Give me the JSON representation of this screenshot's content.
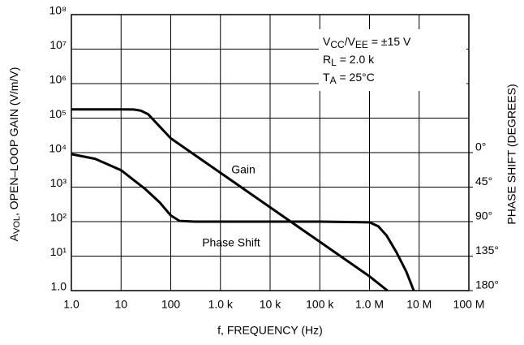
{
  "chart_data": {
    "type": "line",
    "xlabel": "f, FREQUENCY (Hz)",
    "ylabel": [
      "A",
      "VOL",
      ", OPEN–LOOP GAIN (V/m/V)"
    ],
    "y2label": "PHASE SHIFT (DEGREES)",
    "log_x": true,
    "log_y": true,
    "grid": true,
    "xlim": [
      1,
      100000000
    ],
    "xticks": [
      {
        "value": 1,
        "label": "1.0"
      },
      10,
      100,
      {
        "value": 1000,
        "label": "1.0 k"
      },
      {
        "value": 10000,
        "label": "10 k"
      },
      {
        "value": 100000,
        "label": "100 k"
      },
      {
        "value": 1000000,
        "label": "1.0 M"
      },
      {
        "value": 10000000,
        "label": "10 M"
      },
      {
        "value": 100000000,
        "label": "100 M"
      }
    ],
    "ylim": [
      1,
      100000000
    ],
    "yticks": [
      {
        "value": 1,
        "label": "1.0"
      },
      {
        "value": 10,
        "label": "10¹"
      },
      {
        "value": 100,
        "label": "10²"
      },
      {
        "value": 1000,
        "label": "10³"
      },
      {
        "value": 10000,
        "label": "10⁴"
      },
      {
        "value": 100000,
        "label": "10⁵"
      },
      {
        "value": 1000000,
        "label": "10⁶"
      },
      {
        "value": 10000000,
        "label": "10⁷"
      },
      {
        "value": 100000000,
        "label": "10⁸"
      }
    ],
    "y2lim": [
      180,
      -180
    ],
    "y2ticks": [
      {
        "value": 0,
        "label": "0°"
      },
      {
        "value": 45,
        "label": "45°"
      },
      {
        "value": 90,
        "label": "90°"
      },
      {
        "value": 135,
        "label": "135°"
      },
      {
        "value": 180,
        "label": "180°"
      }
    ],
    "series": [
      {
        "name": "Gain",
        "color": "#000000",
        "x": [
          1,
          10,
          18,
          25,
          35,
          100,
          1000,
          10000,
          100000,
          1000000,
          2300000
        ],
        "values": [
          180000,
          180000,
          178000,
          165000,
          130000,
          26000,
          2600,
          260,
          26,
          2.6,
          1
        ]
      },
      {
        "name": "Phase Shift",
        "color": "#000000",
        "axis": "y2",
        "x": [
          1,
          3,
          10,
          30,
          60,
          100,
          150,
          300,
          100000,
          1000000,
          1500000,
          2200000,
          3500000,
          5500000,
          7800000
        ],
        "values": [
          2,
          8,
          23,
          47,
          65,
          82,
          89,
          90,
          90,
          91,
          96,
          108,
          130,
          155,
          180
        ]
      }
    ],
    "conditions": [
      [
        "V",
        "CC",
        "/V",
        "EE",
        " = ±15 V"
      ],
      [
        "R",
        "L",
        " = 2.0 k"
      ],
      [
        "T",
        "A",
        " = 25°C"
      ]
    ]
  }
}
